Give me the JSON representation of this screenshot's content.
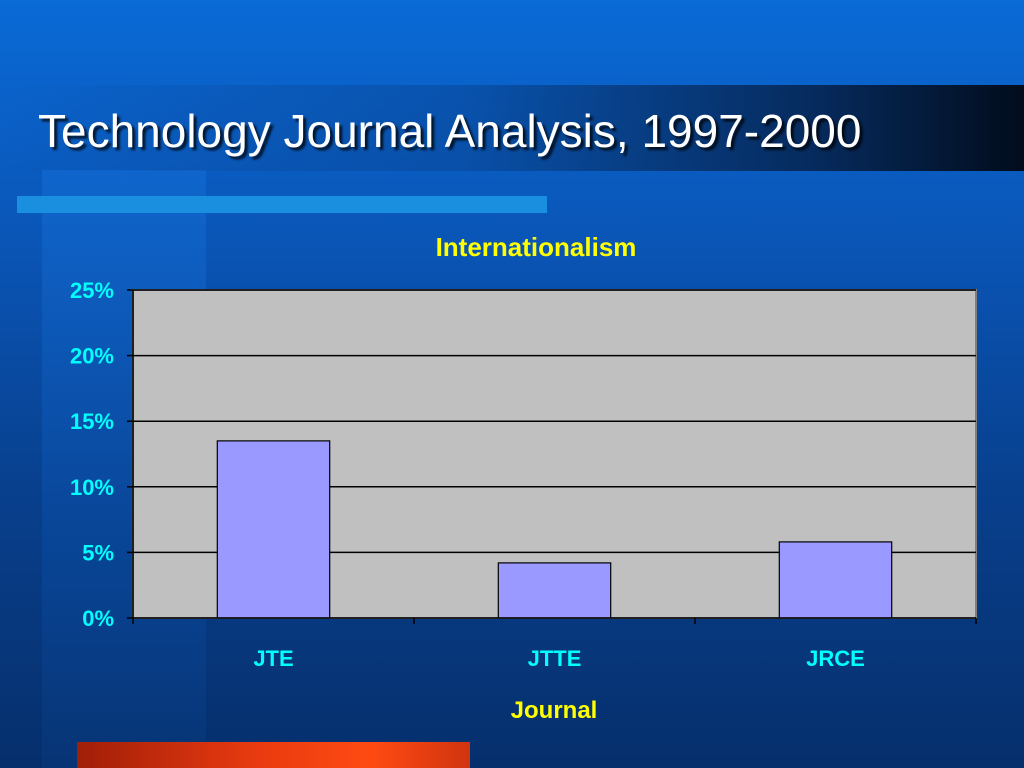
{
  "slide": {
    "title": "Technology Journal Analysis, 1997-2000",
    "background_color": "#0a56b8",
    "accent_bar_color": "#1a8fe0",
    "bottom_bar_color": "#ff4a12"
  },
  "chart_data": {
    "type": "bar",
    "title": "Internationalism",
    "xlabel": "Journal",
    "ylabel": "",
    "categories": [
      "JTE",
      "JTTE",
      "JRCE"
    ],
    "values": [
      0.135,
      0.042,
      0.058
    ],
    "ylim": [
      0,
      0.25
    ],
    "y_ticks": [
      0,
      0.05,
      0.1,
      0.15,
      0.2,
      0.25
    ],
    "y_tick_labels": [
      "0%",
      "5%",
      "10%",
      "15%",
      "20%",
      "25%"
    ],
    "grid": true,
    "legend": "none",
    "colors": {
      "bar": "#9999ff",
      "plot_area": "#c0c0c0",
      "title": "#ffff00",
      "xlabel": "#ffff00",
      "tick_labels": "#00ffff"
    }
  }
}
